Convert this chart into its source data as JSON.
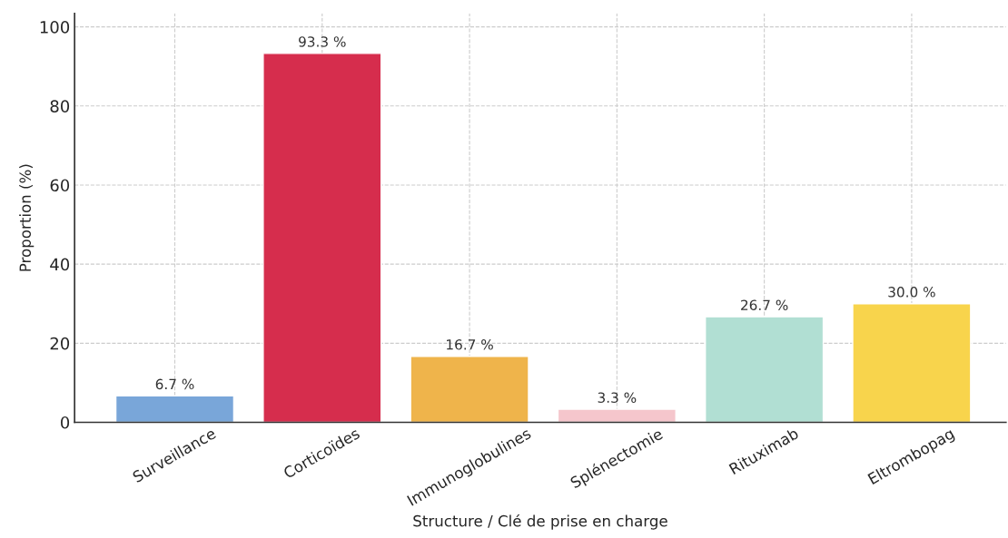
{
  "chart_data": {
    "type": "bar",
    "xlabel": "Structure / Clé de prise en charge",
    "ylabel": "Proportion (%)",
    "categories": [
      "Surveillance",
      "Corticoïdes",
      "Immunoglobulines",
      "Splénectomie",
      "Rituximab",
      "Eltrombopag"
    ],
    "values": [
      6.7,
      93.3,
      16.7,
      3.3,
      26.7,
      30.0
    ],
    "colors": [
      "#79a6d9",
      "#d62d4d",
      "#efb44b",
      "#f5c6cc",
      "#b1dfd3",
      "#f8d44c"
    ],
    "value_labels": [
      "6.7 %",
      "93.3 %",
      "16.7 %",
      "3.3 %",
      "26.7 %",
      "30.0 %"
    ],
    "ylim": [
      0,
      103.4
    ],
    "yticks": [
      0,
      20,
      40,
      60,
      80,
      100
    ],
    "grid": true
  }
}
